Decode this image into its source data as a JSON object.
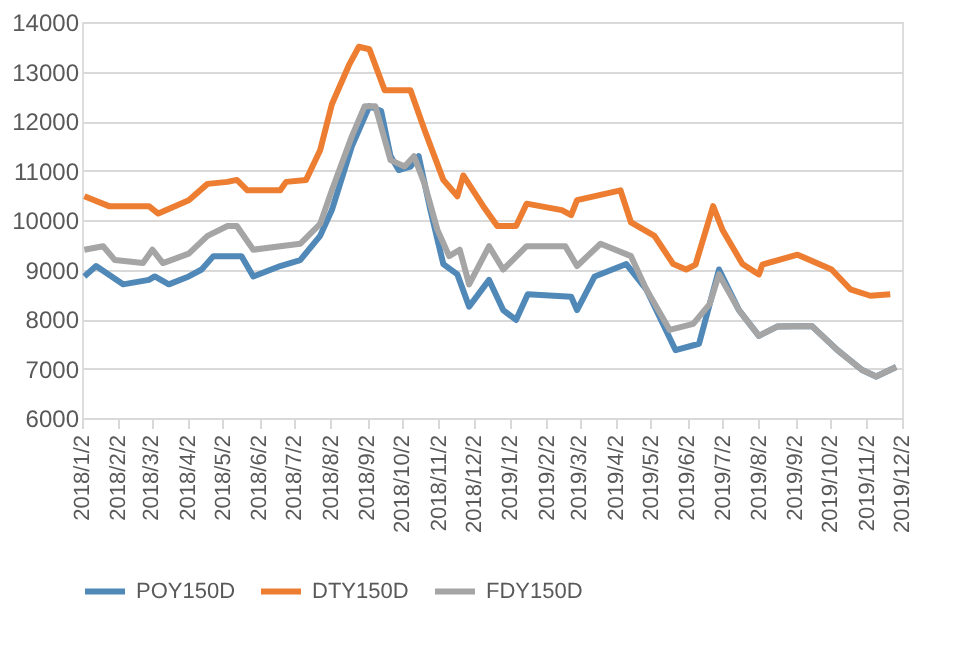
{
  "chart_data": {
    "type": "line",
    "xlim": [
      "2018-01-02",
      "2019-12-02"
    ],
    "xticks": [
      {
        "value": "2018-01-02",
        "label": "2018/1/2"
      },
      {
        "value": "2018-02-02",
        "label": "2018/2/2"
      },
      {
        "value": "2018-03-02",
        "label": "2018/3/2"
      },
      {
        "value": "2018-04-02",
        "label": "2018/4/2"
      },
      {
        "value": "2018-05-02",
        "label": "2018/5/2"
      },
      {
        "value": "2018-06-02",
        "label": "2018/6/2"
      },
      {
        "value": "2018-07-02",
        "label": "2018/7/2"
      },
      {
        "value": "2018-08-02",
        "label": "2018/8/2"
      },
      {
        "value": "2018-09-02",
        "label": "2018/9/2"
      },
      {
        "value": "2018-10-02",
        "label": "2018/10/2"
      },
      {
        "value": "2018-11-02",
        "label": "2018/11/2"
      },
      {
        "value": "2018-12-02",
        "label": "2018/12/2"
      },
      {
        "value": "2019-01-02",
        "label": "2019/1/2"
      },
      {
        "value": "2019-02-02",
        "label": "2019/2/2"
      },
      {
        "value": "2019-03-02",
        "label": "2019/3/2"
      },
      {
        "value": "2019-04-02",
        "label": "2019/4/2"
      },
      {
        "value": "2019-05-02",
        "label": "2019/5/2"
      },
      {
        "value": "2019-06-02",
        "label": "2019/6/2"
      },
      {
        "value": "2019-07-02",
        "label": "2019/7/2"
      },
      {
        "value": "2019-08-02",
        "label": "2019/8/2"
      },
      {
        "value": "2019-09-02",
        "label": "2019/9/2"
      },
      {
        "value": "2019-10-02",
        "label": "2019/10/2"
      },
      {
        "value": "2019-11-02",
        "label": "2019/11/2"
      },
      {
        "value": "2019-12-02",
        "label": "2019/12/2"
      }
    ],
    "ylim": [
      6000,
      14000
    ],
    "yticks": [
      6000,
      7000,
      8000,
      9000,
      10000,
      11000,
      12000,
      13000,
      14000
    ],
    "grid": "y",
    "legend": "bottom",
    "line_style": "solid",
    "series": [
      {
        "name": "POY150D",
        "color": "#5088b8",
        "x": [
          "2018-01-04",
          "2018-01-14",
          "2018-02-06",
          "2018-02-28",
          "2018-03-05",
          "2018-03-17",
          "2018-04-03",
          "2018-04-14",
          "2018-04-24",
          "2018-05-18",
          "2018-05-28",
          "2018-06-20",
          "2018-07-07",
          "2018-07-24",
          "2018-08-03",
          "2018-08-20",
          "2018-09-04",
          "2018-09-14",
          "2018-09-22",
          "2018-09-29",
          "2018-10-09",
          "2018-10-16",
          "2018-10-26",
          "2018-11-06",
          "2018-11-18",
          "2018-11-28",
          "2018-12-15",
          "2018-12-27",
          "2019-01-07",
          "2019-01-17",
          "2019-02-23",
          "2019-02-28",
          "2019-03-15",
          "2019-04-11",
          "2019-04-28",
          "2019-05-23",
          "2019-06-12",
          "2019-06-29",
          "2019-07-16",
          "2019-08-02",
          "2019-08-18",
          "2019-09-16",
          "2019-10-08",
          "2019-10-29",
          "2019-11-10",
          "2019-11-27"
        ],
        "values": [
          8860,
          9070,
          8700,
          8790,
          8860,
          8700,
          8860,
          9000,
          9270,
          9270,
          8860,
          9070,
          9190,
          9680,
          10200,
          11490,
          12300,
          12200,
          11290,
          11010,
          11080,
          11290,
          10200,
          9110,
          8900,
          8250,
          8790,
          8180,
          7980,
          8500,
          8450,
          8180,
          8860,
          9110,
          8600,
          7370,
          7500,
          9000,
          8180,
          7660,
          7850,
          7860,
          7370,
          6970,
          6840,
          7030
        ]
      },
      {
        "name": "DTY150D",
        "color": "#ed7d31",
        "x": [
          "2018-01-04",
          "2018-01-25",
          "2018-02-28",
          "2018-03-08",
          "2018-04-03",
          "2018-04-19",
          "2018-05-06",
          "2018-05-14",
          "2018-05-23",
          "2018-06-20",
          "2018-06-25",
          "2018-07-12",
          "2018-07-24",
          "2018-08-03",
          "2018-08-18",
          "2018-08-26",
          "2018-09-04",
          "2018-09-17",
          "2018-10-09",
          "2018-10-21",
          "2018-11-06",
          "2018-11-18",
          "2018-11-23",
          "2018-12-10",
          "2018-12-22",
          "2019-01-07",
          "2019-01-16",
          "2019-02-15",
          "2019-02-23",
          "2019-02-28",
          "2019-04-06",
          "2019-04-15",
          "2019-05-05",
          "2019-05-21",
          "2019-06-01",
          "2019-06-09",
          "2019-06-24",
          "2019-07-02",
          "2019-07-19",
          "2019-08-02",
          "2019-08-05",
          "2019-09-04",
          "2019-10-03",
          "2019-10-19",
          "2019-11-05",
          "2019-11-22"
        ],
        "values": [
          10480,
          10280,
          10280,
          10130,
          10400,
          10730,
          10770,
          10810,
          10600,
          10600,
          10770,
          10810,
          11410,
          12340,
          13150,
          13500,
          13450,
          12620,
          12620,
          11820,
          10810,
          10480,
          10900,
          10280,
          9880,
          9880,
          10330,
          10200,
          10100,
          10400,
          10600,
          9950,
          9680,
          9110,
          9000,
          9100,
          10280,
          9800,
          9110,
          8900,
          9100,
          9300,
          9000,
          8600,
          8470,
          8500
        ]
      },
      {
        "name": "FDY150D",
        "color": "#a5a5a5",
        "x": [
          "2018-01-04",
          "2018-01-20",
          "2018-01-30",
          "2018-02-23",
          "2018-03-03",
          "2018-03-12",
          "2018-04-03",
          "2018-04-19",
          "2018-05-06",
          "2018-05-14",
          "2018-05-28",
          "2018-06-20",
          "2018-07-07",
          "2018-07-24",
          "2018-08-03",
          "2018-08-20",
          "2018-08-31",
          "2018-09-09",
          "2018-09-22",
          "2018-10-04",
          "2018-10-12",
          "2018-10-21",
          "2018-11-01",
          "2018-11-11",
          "2018-11-20",
          "2018-11-28",
          "2018-12-15",
          "2018-12-27",
          "2019-01-16",
          "2019-02-18",
          "2019-02-28",
          "2019-03-20",
          "2019-04-15",
          "2019-04-28",
          "2019-05-18",
          "2019-06-07",
          "2019-06-21",
          "2019-06-29",
          "2019-07-16",
          "2019-08-02",
          "2019-08-18",
          "2019-09-16",
          "2019-10-08",
          "2019-10-29",
          "2019-11-10",
          "2019-11-27"
        ],
        "values": [
          9400,
          9470,
          9190,
          9130,
          9400,
          9130,
          9320,
          9680,
          9880,
          9880,
          9400,
          9470,
          9520,
          9920,
          10600,
          11690,
          12300,
          12300,
          11210,
          11080,
          11290,
          10730,
          9800,
          9270,
          9400,
          8700,
          9470,
          9000,
          9470,
          9470,
          9070,
          9520,
          9270,
          8600,
          7780,
          7900,
          8300,
          8900,
          8180,
          7660,
          7850,
          7860,
          7370,
          6970,
          6840,
          7030
        ]
      }
    ]
  }
}
